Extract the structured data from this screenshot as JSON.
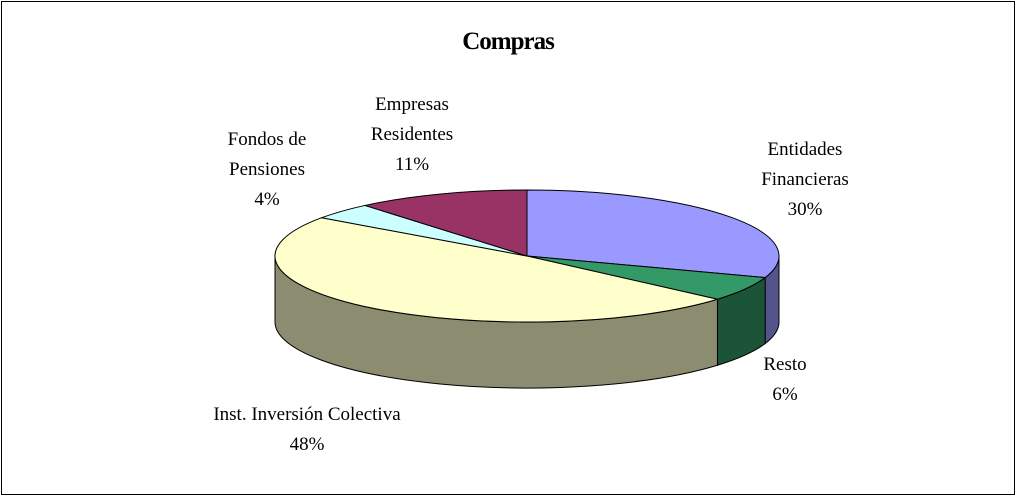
{
  "chart_data": {
    "type": "pie3d",
    "title": "Compras",
    "categories": [
      "Entidades Financieras",
      "Resto",
      "Inst. Inversión Colectiva",
      "Fondos de Pensiones",
      "Empresas Residentes"
    ],
    "values": [
      30,
      6,
      48,
      4,
      11
    ],
    "value_labels": [
      "30%",
      "6%",
      "48%",
      "4%",
      "11%"
    ],
    "colors": [
      "#9999ff",
      "#339966",
      "#ffffcc",
      "#ccffff",
      "#993366"
    ]
  }
}
